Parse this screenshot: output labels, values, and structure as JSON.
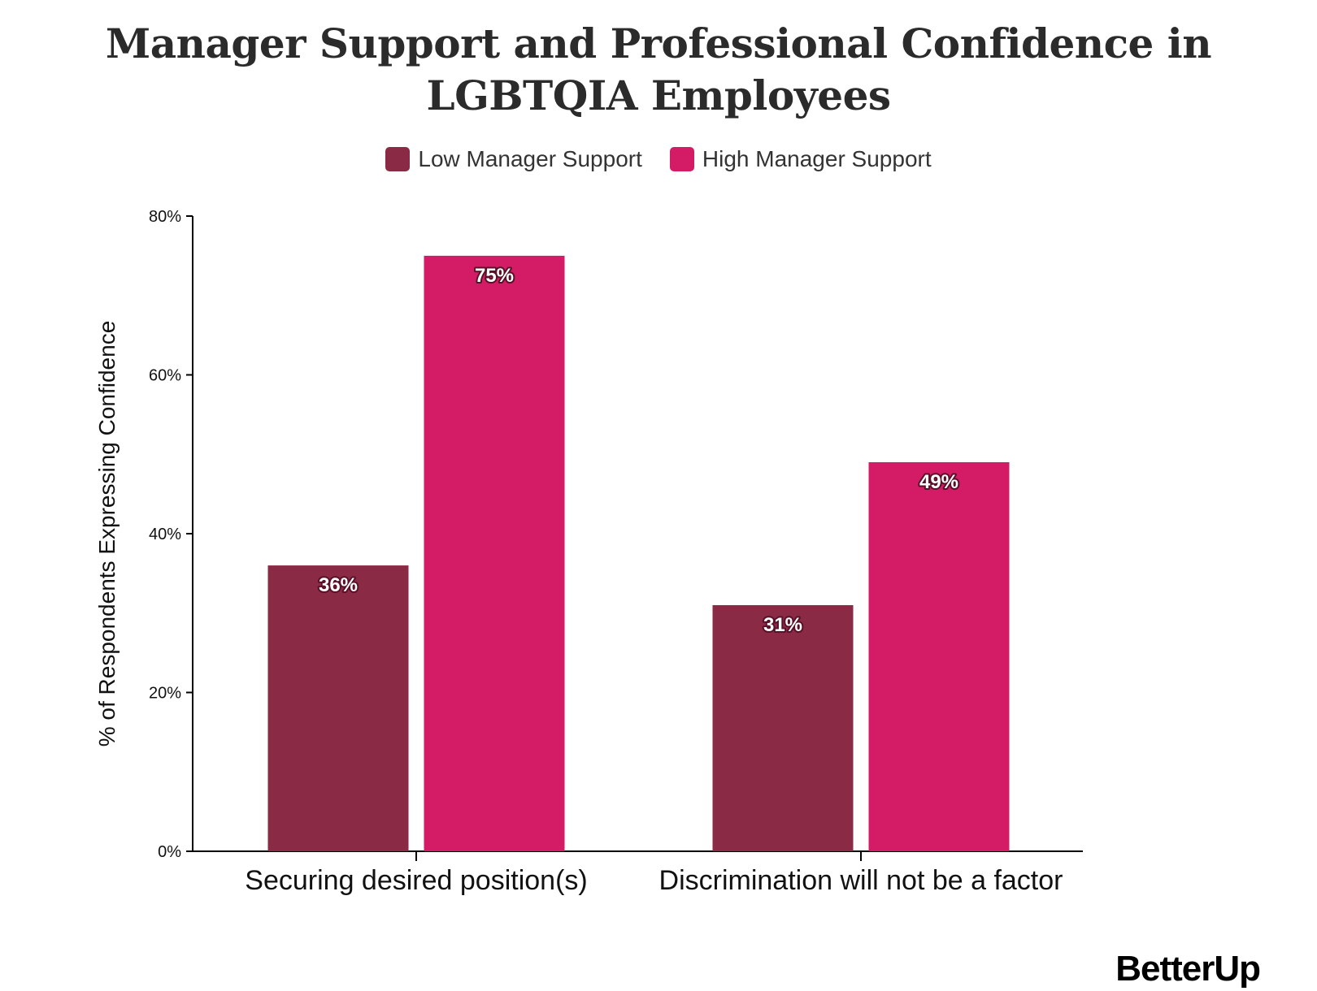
{
  "title": "Manager Support and Professional Confidence in LGBTQIA Employees",
  "brand": "BetterUp",
  "chart_data": {
    "type": "bar",
    "title": "Manager Support and Professional Confidence in LGBTQIA Employees",
    "xlabel": "",
    "ylabel": "% of Respondents Expressing Confidence",
    "categories": [
      "Securing desired position(s)",
      "Discrimination will not be a factor"
    ],
    "series": [
      {
        "name": "Low Manager Support",
        "values": [
          36,
          31
        ],
        "labels": [
          "36%",
          "31%"
        ],
        "color": "#8B2A45"
      },
      {
        "name": "High Manager Support",
        "values": [
          75,
          49
        ],
        "labels": [
          "75%",
          "49%"
        ],
        "color": "#D41B66"
      }
    ],
    "ylim": [
      0,
      80
    ],
    "yticks": [
      0,
      20,
      40,
      60,
      80
    ],
    "ytick_labels": [
      "0%",
      "20%",
      "40%",
      "60%",
      "80%"
    ],
    "legend_position": "top-center",
    "grid": false
  }
}
